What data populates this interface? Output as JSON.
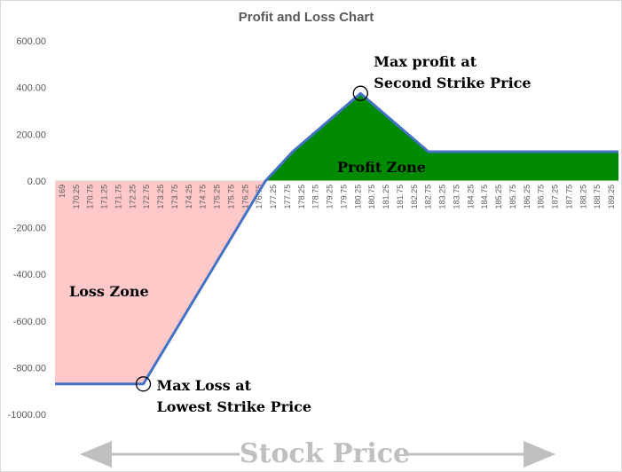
{
  "chart_data": {
    "type": "area",
    "title": "Profit and Loss Chart",
    "xlabel": "Stock Price",
    "ylabel": "",
    "ylim": [
      -1000,
      600
    ],
    "yticks": [
      "600.00",
      "400.00",
      "200.00",
      "0.00",
      "-200.00",
      "-400.00",
      "-600.00",
      "-800.00",
      "-1000.00"
    ],
    "ytick_values": [
      600,
      400,
      200,
      0,
      -200,
      -400,
      -600,
      -800,
      -1000
    ],
    "xticks": [
      "169",
      "170.25",
      "170.75",
      "171.25",
      "171.75",
      "172.25",
      "172.75",
      "173.25",
      "173.75",
      "174.25",
      "174.75",
      "175.25",
      "175.75",
      "176.25",
      "176.75",
      "177.25",
      "177.75",
      "178.25",
      "178.75",
      "179.25",
      "179.75",
      "180.25",
      "180.75",
      "181.25",
      "181.75",
      "182.25",
      "182.75",
      "183.25",
      "183.75",
      "184.25",
      "184.75",
      "185.25",
      "185.75",
      "186.25",
      "186.75",
      "187.25",
      "187.75",
      "188.25",
      "188.75",
      "189.25"
    ],
    "series": [
      {
        "x": [
          169,
          172.25,
          176.75,
          177.75,
          180.25,
          182.75,
          189.75
        ],
        "y": [
          -870,
          -870,
          0,
          125,
          375,
          125,
          125
        ]
      }
    ],
    "grid": false,
    "annotations": [
      {
        "lines": [
          "Max profit at",
          "Second Strike Price"
        ],
        "x": 180.25,
        "y": 375
      },
      {
        "lines": [
          "Max Loss at",
          "Lowest Strike Price"
        ],
        "x": 172.25,
        "y": -870
      }
    ],
    "zones": {
      "profit": "Profit Zone",
      "loss": "Loss Zone"
    },
    "colors": {
      "line": "#4472c4",
      "profit_fill": "#008a00",
      "loss_fill": "#ffc9c9",
      "caption": "#bfbfbf"
    }
  }
}
